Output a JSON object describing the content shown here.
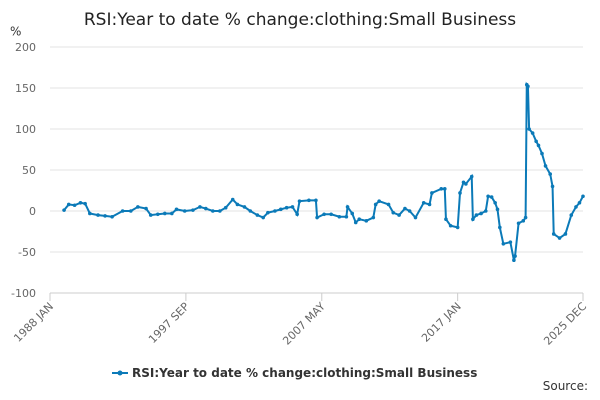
{
  "chart_data": {
    "type": "line",
    "title": "RSI:Year to date % change:clothing:Small Business",
    "y_label": "%",
    "source": "Source:",
    "x": [
      "1989 JAN",
      "1989 MAY",
      "1989 OCT",
      "1990 MAR",
      "1990 JUL",
      "1990 NOV",
      "1991 JUN",
      "1991 DEC",
      "1992 JUN",
      "1993 MAR",
      "1993 OCT",
      "1994 APR",
      "1994 NOV",
      "1995 MAR",
      "1995 SEP",
      "1996 MAR",
      "1996 SEP",
      "1997 JAN",
      "1997 AUG",
      "1998 MAR",
      "1998 SEP",
      "1999 FEB",
      "1999 AUG",
      "2000 FEB",
      "2000 JUL",
      "2001 JAN",
      "2001 MAY",
      "2001 NOV",
      "2002 APR",
      "2002 OCT",
      "2003 MAR",
      "2003 JUL",
      "2004 JAN",
      "2004 JUN",
      "2004 NOV",
      "2005 APR",
      "2005 AUG",
      "2005 OCT",
      "2006 JUN",
      "2006 DEC",
      "2007 JAN",
      "2007 JUL",
      "2008 JAN",
      "2008 AUG",
      "2009 FEB",
      "2009 MAR",
      "2009 JUL",
      "2009 OCT",
      "2010 JAN",
      "2010 JUL",
      "2011 JAN",
      "2011 MAR",
      "2011 JUN",
      "2012 FEB",
      "2012 JUN",
      "2012 NOV",
      "2013 APR",
      "2013 AUG",
      "2014 JAN",
      "2014 AUG",
      "2015 JAN",
      "2015 MAR",
      "2015 NOV",
      "2016 FEB",
      "2016 MAR",
      "2016 JUL",
      "2017 JAN",
      "2017 MAR",
      "2017 JUN",
      "2017 AUG",
      "2018 JAN",
      "2018 FEB",
      "2018 MAY",
      "2018 SEP",
      "2019 JAN",
      "2019 MAR",
      "2019 JUN",
      "2019 SEP",
      "2019 NOV",
      "2020 JAN",
      "2020 APR",
      "2020 OCT",
      "2021 JAN",
      "2021 FEB",
      "2021 MAY",
      "2021 SEP",
      "2021 NOV",
      "2021 DEC",
      "2022 JAN",
      "2022 FEB",
      "2022 MAY",
      "2022 AUG",
      "2022 OCT",
      "2023 JAN",
      "2023 APR",
      "2023 AUG",
      "2023 OCT",
      "2023 NOV",
      "2024 APR",
      "2024 SEP",
      "2025 FEB",
      "2025 JUN",
      "2025 SEP",
      "2025 DEC"
    ],
    "series": [
      {
        "name": "RSI:Year to date % change:clothing:Small Business",
        "color": "#0b7ab8",
        "values": [
          1,
          8,
          7,
          10,
          9,
          -3,
          -5,
          -6,
          -7,
          0,
          0,
          5,
          3,
          -5,
          -4,
          -3,
          -3,
          2,
          0,
          1,
          5,
          3,
          0,
          0,
          4,
          14,
          8,
          5,
          0,
          -5,
          -8,
          -2,
          0,
          2,
          4,
          5,
          -4,
          12,
          13,
          13,
          -8,
          -4,
          -4,
          -7,
          -7,
          5,
          -3,
          -14,
          -10,
          -12,
          -8,
          8,
          12,
          8,
          -2,
          -5,
          3,
          0,
          -8,
          10,
          8,
          22,
          27,
          27,
          -10,
          -18,
          -20,
          22,
          35,
          33,
          42,
          -10,
          -5,
          -3,
          0,
          18,
          17,
          10,
          2,
          -20,
          -40,
          -38,
          -60,
          -55,
          -15,
          -12,
          -8,
          154,
          152,
          100,
          95,
          85,
          80,
          70,
          55,
          45,
          30,
          -28,
          -33,
          -28,
          -5,
          5,
          10,
          18
        ]
      }
    ],
    "xlim": [
      "1988 JAN",
      "2025 DEC"
    ],
    "xticks": [
      "1988 JAN",
      "1997 SEP",
      "2007 MAY",
      "2017 JAN",
      "2025 DEC"
    ],
    "ylim": [
      -100,
      200
    ],
    "yticks": [
      -100,
      -50,
      0,
      50,
      100,
      150,
      200
    ],
    "grid": true,
    "legend": "bottom"
  }
}
